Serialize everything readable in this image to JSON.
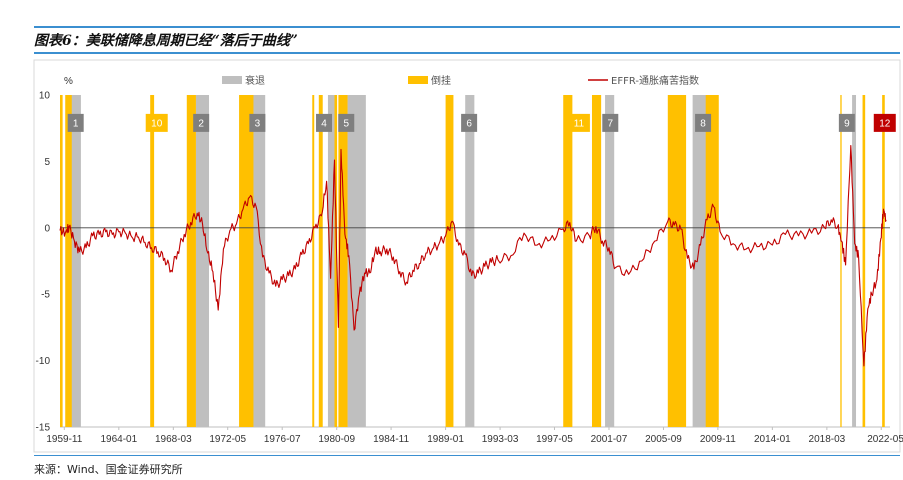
{
  "header": {
    "title": "图表6：美联储降息周期已经“落后于曲线”"
  },
  "footer": {
    "source": "来源：Wind、国金证券研究所"
  },
  "colors": {
    "recession": "#bfbfbf",
    "inversion": "#ffc000",
    "line": "#c00000",
    "badge_gray": "#7f7f7f",
    "badge_yellow": "#ffc000",
    "badge_red": "#c00000",
    "rule": "#3b8fd0"
  },
  "chart_data": {
    "type": "line",
    "title": "",
    "xlabel": "",
    "ylabel": "%",
    "ylim": [
      -15,
      10
    ],
    "yticks": [
      10,
      5,
      0,
      -5,
      -10,
      -15
    ],
    "xlim": [
      1959.5,
      2023.0
    ],
    "xticks": [
      {
        "label": "1959-11",
        "x": 1959.83
      },
      {
        "label": "1964-01",
        "x": 1964.0
      },
      {
        "label": "1968-03",
        "x": 1968.17
      },
      {
        "label": "1972-05",
        "x": 1972.33
      },
      {
        "label": "1976-07",
        "x": 1976.5
      },
      {
        "label": "1980-09",
        "x": 1980.67
      },
      {
        "label": "1984-11",
        "x": 1984.83
      },
      {
        "label": "1989-01",
        "x": 1989.0
      },
      {
        "label": "1993-03",
        "x": 1993.17
      },
      {
        "label": "1997-05",
        "x": 1997.33
      },
      {
        "label": "2001-07",
        "x": 2001.5
      },
      {
        "label": "2005-09",
        "x": 2005.67
      },
      {
        "label": "2009-11",
        "x": 2009.83
      },
      {
        "label": "2014-01",
        "x": 2014.0
      },
      {
        "label": "2018-03",
        "x": 2018.17
      },
      {
        "label": "2022-05",
        "x": 2022.33
      }
    ],
    "legend": {
      "placement": "top",
      "items": [
        {
          "label": "衰退",
          "kind": "box",
          "color": "#bfbfbf"
        },
        {
          "label": "倒挂",
          "kind": "box",
          "color": "#ffc000"
        },
        {
          "label": "EFFR-通胀痛苦指数",
          "kind": "line",
          "color": "#c00000"
        }
      ]
    },
    "recessions": [
      [
        1960.3,
        1961.1
      ],
      [
        1969.9,
        1970.9
      ],
      [
        1973.9,
        1975.2
      ],
      [
        1980.0,
        1980.5
      ],
      [
        1981.5,
        1982.9
      ],
      [
        1990.5,
        1991.2
      ],
      [
        2001.2,
        2001.9
      ],
      [
        2007.9,
        2009.5
      ],
      [
        2020.1,
        2020.4
      ]
    ],
    "inversions": [
      [
        1959.5,
        1959.7
      ],
      [
        1959.9,
        1960.4
      ],
      [
        1966.4,
        1966.7
      ],
      [
        1969.2,
        1969.9
      ],
      [
        1973.2,
        1974.3
      ],
      [
        1978.8,
        1978.95
      ],
      [
        1979.3,
        1979.6
      ],
      [
        1980.5,
        1980.7
      ],
      [
        1980.8,
        1981.5
      ],
      [
        1989.0,
        1989.6
      ],
      [
        1998.0,
        1998.7
      ],
      [
        2000.2,
        2000.9
      ],
      [
        2006.0,
        2007.4
      ],
      [
        2008.9,
        2009.9
      ],
      [
        2019.2,
        2019.3
      ],
      [
        2020.9,
        2021.1
      ],
      [
        2022.4,
        2022.6
      ]
    ],
    "badges": [
      {
        "label": "1",
        "x": 1960.7,
        "y": 7.9,
        "style": "gray"
      },
      {
        "label": "10",
        "x": 1966.9,
        "y": 7.9,
        "style": "yellow"
      },
      {
        "label": "2",
        "x": 1970.3,
        "y": 7.9,
        "style": "gray"
      },
      {
        "label": "3",
        "x": 1974.6,
        "y": 7.9,
        "style": "gray"
      },
      {
        "label": "4",
        "x": 1979.7,
        "y": 7.9,
        "style": "gray"
      },
      {
        "label": "5",
        "x": 1981.4,
        "y": 7.9,
        "style": "gray"
      },
      {
        "label": "6",
        "x": 1990.8,
        "y": 7.9,
        "style": "gray"
      },
      {
        "label": "11",
        "x": 1999.2,
        "y": 7.9,
        "style": "yellow"
      },
      {
        "label": "7",
        "x": 2001.6,
        "y": 7.9,
        "style": "gray"
      },
      {
        "label": "8",
        "x": 2008.7,
        "y": 7.9,
        "style": "gray"
      },
      {
        "label": "9",
        "x": 2019.7,
        "y": 7.9,
        "style": "gray"
      },
      {
        "label": "12",
        "x": 2022.6,
        "y": 7.9,
        "style": "red"
      }
    ],
    "series": [
      {
        "name": "EFFR-通胀痛苦指数",
        "x": [
          1959.5,
          1959.9,
          1960.2,
          1960.6,
          1961.0,
          1961.5,
          1962.0,
          1962.5,
          1963.0,
          1963.5,
          1964.0,
          1964.5,
          1965.0,
          1965.5,
          1966.0,
          1966.5,
          1967.0,
          1967.5,
          1968.0,
          1968.5,
          1969.0,
          1969.5,
          1970.0,
          1970.4,
          1970.8,
          1971.2,
          1971.6,
          1972.0,
          1972.5,
          1973.0,
          1973.5,
          1974.0,
          1974.5,
          1975.0,
          1975.5,
          1976.0,
          1976.5,
          1977.0,
          1977.5,
          1978.0,
          1978.5,
          1979.0,
          1979.5,
          1979.9,
          1980.2,
          1980.5,
          1980.8,
          1981.0,
          1981.3,
          1981.6,
          1982.0,
          1982.4,
          1982.8,
          1983.2,
          1983.6,
          1984.0,
          1984.5,
          1985.0,
          1985.5,
          1986.0,
          1986.5,
          1987.0,
          1987.5,
          1988.0,
          1988.5,
          1989.0,
          1989.5,
          1990.0,
          1990.5,
          1991.0,
          1991.5,
          1992.0,
          1992.5,
          1993.0,
          1994.0,
          1995.0,
          1996.0,
          1997.0,
          1998.0,
          1998.5,
          1999.0,
          2000.0,
          2000.5,
          2001.0,
          2001.5,
          2002.0,
          2003.0,
          2004.0,
          2005.0,
          2006.0,
          2006.5,
          2007.0,
          2007.5,
          2008.0,
          2008.5,
          2009.0,
          2009.5,
          2010.0,
          2011.0,
          2012.0,
          2013.0,
          2014.0,
          2015.0,
          2016.0,
          2017.0,
          2018.0,
          2018.5,
          2019.0,
          2019.3,
          2019.6,
          2020.0,
          2020.3,
          2020.6,
          2021.0,
          2021.3,
          2021.6,
          2022.0,
          2022.3,
          2022.5,
          2022.7
        ],
        "values": [
          -0.2,
          -0.4,
          0.1,
          -1.0,
          -1.8,
          -1.5,
          -0.6,
          -0.5,
          -0.3,
          -0.5,
          -0.3,
          -0.4,
          -0.7,
          -0.7,
          -1.1,
          -1.5,
          -1.8,
          -2.3,
          -3.2,
          -1.8,
          -0.5,
          0.4,
          1.1,
          0.3,
          -1.9,
          -3.3,
          -6.2,
          -1.6,
          -0.2,
          0.3,
          1.4,
          2.3,
          1.6,
          -2.2,
          -3.4,
          -4.4,
          -3.9,
          -3.6,
          -3.1,
          -2.0,
          -1.2,
          0.0,
          0.9,
          3.5,
          -3.8,
          5.1,
          -7.5,
          5.9,
          -0.5,
          -2.1,
          -7.7,
          -5.0,
          -3.4,
          -3.4,
          -1.8,
          -1.8,
          -1.6,
          -2.2,
          -3.3,
          -4.1,
          -3.2,
          -2.7,
          -1.9,
          -1.6,
          -1.2,
          -0.6,
          0.5,
          -1.3,
          -2.0,
          -3.6,
          -3.4,
          -2.9,
          -2.6,
          -2.4,
          -2.1,
          -0.4,
          -1.3,
          -0.9,
          -0.1,
          0.4,
          -1.0,
          -0.6,
          0.1,
          -1.0,
          -1.5,
          -3.0,
          -3.5,
          -2.5,
          -1.0,
          0.5,
          0.2,
          -0.1,
          -2.3,
          -3.1,
          -1.3,
          0.6,
          1.6,
          -0.3,
          -1.2,
          -1.6,
          -1.4,
          -1.3,
          -0.5,
          -0.6,
          -0.4,
          0.0,
          0.6,
          0.1,
          -1.0,
          -2.8,
          6.2,
          -1.2,
          -2.2,
          -10.4,
          -6.1,
          -5.0,
          -3.9,
          -0.8,
          1.4,
          0.6
        ]
      }
    ]
  }
}
